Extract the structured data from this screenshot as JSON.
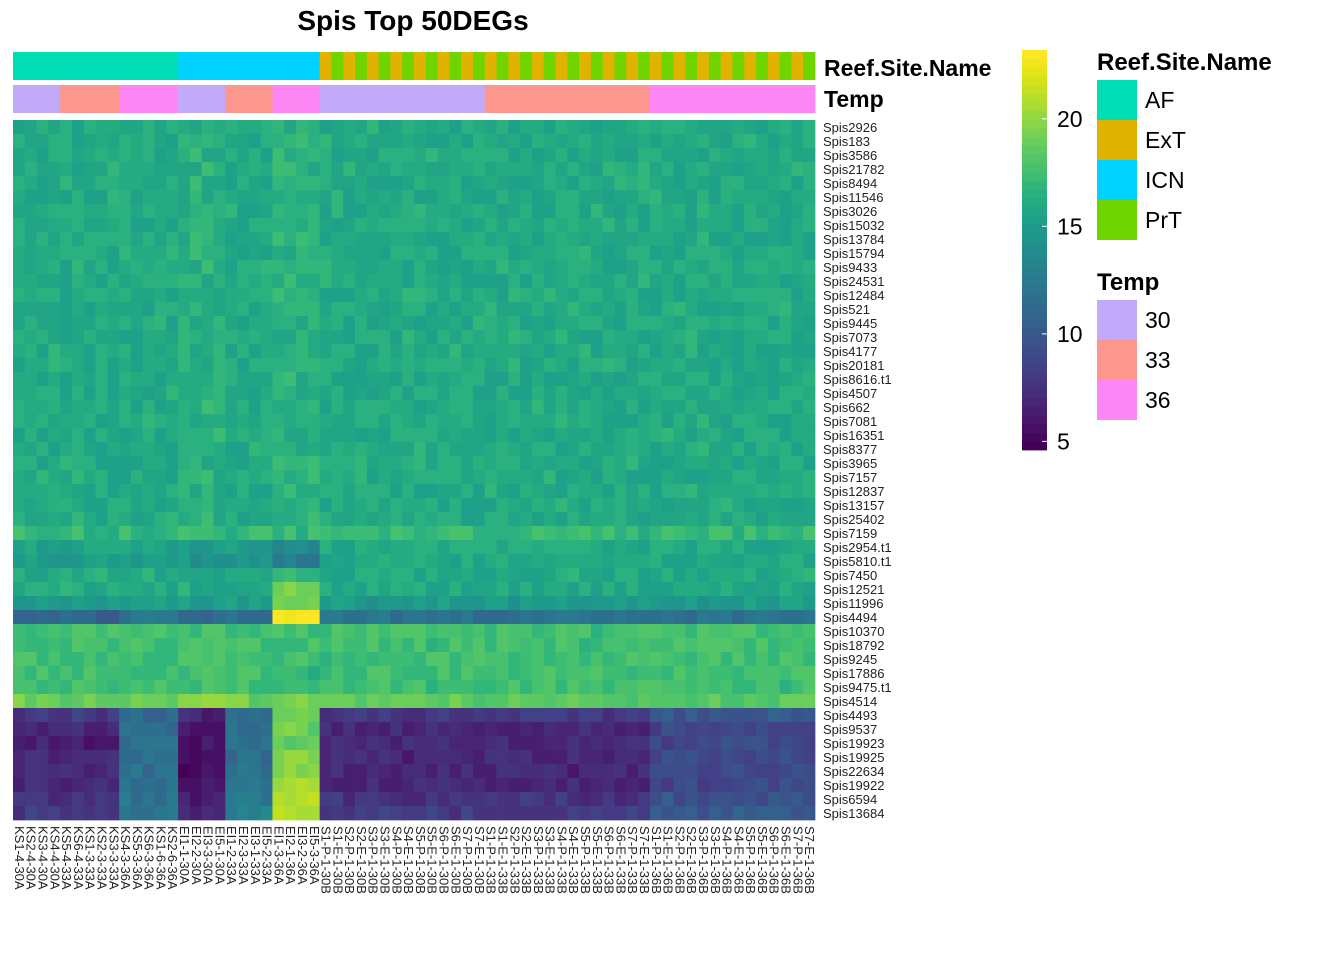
{
  "chart_data": {
    "type": "heatmap",
    "title": "Spis Top 50DEGs",
    "annotation_track_labels": [
      "Reef.Site.Name",
      "Temp"
    ],
    "legend": {
      "reef_title": "Reef.Site.Name",
      "reef_levels": [
        {
          "name": "AF",
          "color": "#00DDB4"
        },
        {
          "name": "ExT",
          "color": "#E0B300"
        },
        {
          "name": "ICN",
          "color": "#00D2FF"
        },
        {
          "name": "PrT",
          "color": "#6FD400"
        }
      ],
      "temp_title": "Temp",
      "temp_levels": [
        {
          "name": "30",
          "color": "#C3A9FA"
        },
        {
          "name": "33",
          "color": "#FD968D"
        },
        {
          "name": "36",
          "color": "#FD87F4"
        }
      ]
    },
    "colorbar": {
      "range": [
        4.6,
        23.2
      ],
      "ticks": [
        5,
        10,
        15,
        20
      ],
      "palette": [
        "#440154",
        "#46085C",
        "#471064",
        "#48176A",
        "#481F70",
        "#482576",
        "#472C7A",
        "#46337E",
        "#443983",
        "#424086",
        "#3F4788",
        "#3C4D8A",
        "#3A538B",
        "#37598C",
        "#355F8D",
        "#32648E",
        "#30698E",
        "#2D708E",
        "#2B758E",
        "#297A8E",
        "#277F8E",
        "#25858E",
        "#238A8D",
        "#21908D",
        "#1F958B",
        "#1F9A8A",
        "#1FA088",
        "#21A585",
        "#25AB82",
        "#2BB07F",
        "#33B67A",
        "#3DBC74",
        "#47C16E",
        "#52C569",
        "#5EC962",
        "#6BCD5A",
        "#79D151",
        "#88D548",
        "#97D83F",
        "#A7DB35",
        "#B5DE2B",
        "#C5E021",
        "#D5E21A",
        "#E4E419",
        "#F1E51D",
        "#FDE725"
      ],
      "band_count": 14
    },
    "rows": [
      "Spis2926",
      "Spis183",
      "Spis3586",
      "Spis21782",
      "Spis8494",
      "Spis11546",
      "Spis3026",
      "Spis15032",
      "Spis13784",
      "Spis15794",
      "Spis9433",
      "Spis24531",
      "Spis12484",
      "Spis521",
      "Spis9445",
      "Spis7073",
      "Spis4177",
      "Spis20181",
      "Spis8616.t1",
      "Spis4507",
      "Spis662",
      "Spis7081",
      "Spis16351",
      "Spis8377",
      "Spis3965",
      "Spis7157",
      "Spis12837",
      "Spis13157",
      "Spis25402",
      "Spis7159",
      "Spis2954.t1",
      "Spis5810.t1",
      "Spis7450",
      "Spis12521",
      "Spis11996",
      "Spis4494",
      "Spis10370",
      "Spis18792",
      "Spis9245",
      "Spis17886",
      "Spis9475.t1",
      "Spis4514",
      "Spis4493",
      "Spis9537",
      "Spis19923",
      "Spis19925",
      "Spis22634",
      "Spis19922",
      "Spis6594",
      "Spis13684"
    ],
    "columns": [
      {
        "label": "KS1-4-30A",
        "reef": "AF",
        "temp": "30"
      },
      {
        "label": "KS2-4-30A",
        "reef": "AF",
        "temp": "30"
      },
      {
        "label": "KS3-4-30A",
        "reef": "AF",
        "temp": "30"
      },
      {
        "label": "KS4-4-30A",
        "reef": "AF",
        "temp": "30"
      },
      {
        "label": "KS5-4-33A",
        "reef": "AF",
        "temp": "33"
      },
      {
        "label": "KS6-4-33A",
        "reef": "AF",
        "temp": "33"
      },
      {
        "label": "KS1-3-33A",
        "reef": "AF",
        "temp": "33"
      },
      {
        "label": "KS2-3-33A",
        "reef": "AF",
        "temp": "33"
      },
      {
        "label": "KS3-3-33A",
        "reef": "AF",
        "temp": "33"
      },
      {
        "label": "KS4-3-36A",
        "reef": "AF",
        "temp": "36"
      },
      {
        "label": "KS5-3-36A",
        "reef": "AF",
        "temp": "36"
      },
      {
        "label": "KS6-3-36A",
        "reef": "AF",
        "temp": "36"
      },
      {
        "label": "KS1-6-36A",
        "reef": "AF",
        "temp": "36"
      },
      {
        "label": "KS2-6-36A",
        "reef": "AF",
        "temp": "36"
      },
      {
        "label": "EI1-1-30A",
        "reef": "ICN",
        "temp": "30"
      },
      {
        "label": "EI2-2-30A",
        "reef": "ICN",
        "temp": "30"
      },
      {
        "label": "EI3-3-30A",
        "reef": "ICN",
        "temp": "30"
      },
      {
        "label": "EI5-1-30A",
        "reef": "ICN",
        "temp": "30"
      },
      {
        "label": "EI1-2-33A",
        "reef": "ICN",
        "temp": "33"
      },
      {
        "label": "EI2-3-33A",
        "reef": "ICN",
        "temp": "33"
      },
      {
        "label": "EI3-1-33A",
        "reef": "ICN",
        "temp": "33"
      },
      {
        "label": "EI5-2-33A",
        "reef": "ICN",
        "temp": "33"
      },
      {
        "label": "EI1-3-36A",
        "reef": "ICN",
        "temp": "36"
      },
      {
        "label": "EI2-1-36A",
        "reef": "ICN",
        "temp": "36"
      },
      {
        "label": "EI3-2-36A",
        "reef": "ICN",
        "temp": "36"
      },
      {
        "label": "EI5-3-36A",
        "reef": "ICN",
        "temp": "36"
      },
      {
        "label": "S1-P-1-30B",
        "reef": "ExT",
        "temp": "30"
      },
      {
        "label": "S1-E-1-30B",
        "reef": "PrT",
        "temp": "30"
      },
      {
        "label": "S2-P-1-30B",
        "reef": "ExT",
        "temp": "30"
      },
      {
        "label": "S2-E-1-30B",
        "reef": "PrT",
        "temp": "30"
      },
      {
        "label": "S3-P-1-30B",
        "reef": "ExT",
        "temp": "30"
      },
      {
        "label": "S3-E-1-30B",
        "reef": "PrT",
        "temp": "30"
      },
      {
        "label": "S4-P-1-30B",
        "reef": "ExT",
        "temp": "30"
      },
      {
        "label": "S4-E-1-30B",
        "reef": "PrT",
        "temp": "30"
      },
      {
        "label": "S5-P-1-30B",
        "reef": "ExT",
        "temp": "30"
      },
      {
        "label": "S5-E-1-30B",
        "reef": "PrT",
        "temp": "30"
      },
      {
        "label": "S6-P-1-30B",
        "reef": "ExT",
        "temp": "30"
      },
      {
        "label": "S6-E-1-30B",
        "reef": "PrT",
        "temp": "30"
      },
      {
        "label": "S7-P-1-30B",
        "reef": "ExT",
        "temp": "30"
      },
      {
        "label": "S7-E-1-30B",
        "reef": "PrT",
        "temp": "30"
      },
      {
        "label": "S1-P-1-33B",
        "reef": "ExT",
        "temp": "33"
      },
      {
        "label": "S1-E-1-33B",
        "reef": "PrT",
        "temp": "33"
      },
      {
        "label": "S2-P-1-33B",
        "reef": "ExT",
        "temp": "33"
      },
      {
        "label": "S2-E-1-33B",
        "reef": "PrT",
        "temp": "33"
      },
      {
        "label": "S3-P-1-33B",
        "reef": "ExT",
        "temp": "33"
      },
      {
        "label": "S3-E-1-33B",
        "reef": "PrT",
        "temp": "33"
      },
      {
        "label": "S4-P-1-33B",
        "reef": "ExT",
        "temp": "33"
      },
      {
        "label": "S4-E-1-33B",
        "reef": "PrT",
        "temp": "33"
      },
      {
        "label": "S5-P-1-33B",
        "reef": "ExT",
        "temp": "33"
      },
      {
        "label": "S5-E-1-33B",
        "reef": "PrT",
        "temp": "33"
      },
      {
        "label": "S6-P-1-33B",
        "reef": "ExT",
        "temp": "33"
      },
      {
        "label": "S6-E-1-33B",
        "reef": "PrT",
        "temp": "33"
      },
      {
        "label": "S7-P-1-33B",
        "reef": "ExT",
        "temp": "33"
      },
      {
        "label": "S7-E-1-33B",
        "reef": "PrT",
        "temp": "33"
      },
      {
        "label": "S1-P-1-36B",
        "reef": "ExT",
        "temp": "36"
      },
      {
        "label": "S1-E-1-36B",
        "reef": "PrT",
        "temp": "36"
      },
      {
        "label": "S2-P-1-36B",
        "reef": "ExT",
        "temp": "36"
      },
      {
        "label": "S2-E-1-36B",
        "reef": "PrT",
        "temp": "36"
      },
      {
        "label": "S3-P-1-36B",
        "reef": "ExT",
        "temp": "36"
      },
      {
        "label": "S3-E-1-36B",
        "reef": "PrT",
        "temp": "36"
      },
      {
        "label": "S4-P-1-36B",
        "reef": "ExT",
        "temp": "36"
      },
      {
        "label": "S4-E-1-36B",
        "reef": "PrT",
        "temp": "36"
      },
      {
        "label": "S5-P-1-36B",
        "reef": "ExT",
        "temp": "36"
      },
      {
        "label": "S5-E-1-36B",
        "reef": "PrT",
        "temp": "36"
      },
      {
        "label": "S6-P-1-36B",
        "reef": "ExT",
        "temp": "36"
      },
      {
        "label": "S6-E-1-36B",
        "reef": "PrT",
        "temp": "36"
      },
      {
        "label": "S7-P-1-36B",
        "reef": "ExT",
        "temp": "36"
      },
      {
        "label": "S7-E-1-36B",
        "reef": "PrT",
        "temp": "36"
      }
    ],
    "row_means": {
      "AF": {
        "30": [
          16,
          16,
          16,
          16,
          16,
          16,
          16,
          16,
          16,
          16,
          16,
          16,
          16,
          16,
          16,
          16,
          16,
          16,
          16,
          16,
          16,
          16,
          16,
          16,
          16,
          16,
          16,
          16,
          16,
          17,
          15.5,
          15,
          16,
          16,
          15,
          11,
          17.5,
          17.5,
          17.5,
          17.5,
          17.5,
          19,
          8,
          7,
          6.5,
          7,
          7,
          7,
          7.5,
          8
        ],
        "33": [
          16,
          16,
          16,
          16,
          16,
          16,
          16,
          16,
          16,
          16,
          16,
          16,
          16,
          16,
          16,
          16,
          16,
          16,
          16,
          16,
          16,
          16,
          16,
          16,
          16,
          16,
          16,
          16,
          16,
          17,
          15.5,
          15,
          16,
          16,
          15,
          11,
          17.5,
          17.5,
          17.5,
          17.5,
          17.5,
          19,
          8,
          7,
          6.5,
          7,
          7,
          7,
          7.5,
          8
        ],
        "36": [
          16,
          16,
          16,
          16,
          16,
          16,
          16,
          16,
          16,
          16,
          16,
          16,
          16,
          16,
          16,
          16,
          16,
          16,
          16,
          16,
          16,
          16,
          16,
          16,
          16,
          16,
          16,
          16,
          16,
          17,
          15.5,
          15,
          16,
          16,
          15,
          12,
          17.5,
          17.5,
          17.5,
          17.5,
          17.5,
          19,
          11,
          11.5,
          11.5,
          11.5,
          11.5,
          12,
          12,
          12
        ]
      },
      "ICN": {
        "30": [
          16.5,
          16.5,
          16.5,
          16.5,
          16.5,
          16.5,
          16.5,
          16.5,
          16.5,
          16.5,
          16.5,
          16.5,
          16.5,
          16.5,
          16.5,
          16.5,
          16.5,
          16.5,
          16.5,
          16.5,
          16.5,
          16.5,
          16.5,
          16.5,
          16.5,
          16.5,
          16.5,
          16.5,
          16.5,
          17,
          15,
          14.5,
          16,
          16,
          15,
          11,
          17.5,
          17.5,
          17.5,
          17.5,
          17.5,
          20,
          7,
          6,
          5.5,
          5.5,
          5.5,
          6,
          6.5,
          7
        ],
        "33": [
          16,
          16,
          16,
          16,
          16,
          16,
          16,
          16,
          16,
          16,
          16,
          16,
          16,
          16,
          16,
          16,
          16,
          16,
          16,
          16,
          16,
          16,
          16,
          16,
          16,
          16,
          16,
          16,
          16,
          17,
          15,
          14.5,
          16,
          16,
          15,
          12,
          17.5,
          17.5,
          17.5,
          17.5,
          17.5,
          19,
          11,
          11.5,
          11.5,
          11.5,
          12,
          12,
          12.5,
          13
        ],
        "36": [
          16.5,
          16.5,
          16.5,
          16.5,
          16.5,
          16.5,
          16.5,
          16.5,
          16.5,
          16.5,
          16.5,
          16.5,
          16.5,
          16.5,
          16.5,
          16.5,
          16.5,
          16.5,
          16.5,
          16.5,
          16.5,
          16.5,
          16.5,
          16.5,
          16.5,
          16.5,
          16.5,
          16.5,
          16.5,
          17,
          14,
          12.5,
          17,
          19,
          19,
          23,
          17.5,
          17.5,
          17.5,
          17,
          17.5,
          19,
          19,
          19,
          19,
          19.5,
          20,
          20.5,
          21,
          21
        ]
      },
      "ExT": {
        "30": [
          16,
          16,
          16,
          16,
          16,
          16,
          16,
          16,
          16,
          16,
          16,
          16,
          16,
          16,
          16,
          16,
          16,
          16,
          16,
          16,
          16,
          16,
          16,
          16,
          16,
          16,
          16,
          16,
          16,
          17,
          16,
          16,
          16,
          16,
          15,
          12,
          17.5,
          17.5,
          17.5,
          17.5,
          17.5,
          18.5,
          8,
          7,
          7,
          7,
          7,
          7,
          7.5,
          8
        ],
        "33": [
          16,
          16,
          16,
          16,
          16,
          16,
          16,
          16,
          16,
          16,
          16,
          16,
          16,
          16,
          16,
          16,
          16,
          16,
          16,
          16,
          16,
          16,
          16,
          16,
          16,
          16,
          16,
          16,
          16,
          17,
          16,
          16,
          16,
          16,
          15,
          12,
          17.5,
          17.5,
          17.5,
          17.5,
          17.5,
          18.5,
          8,
          7,
          7,
          7,
          7,
          7,
          7.5,
          8
        ],
        "36": [
          16,
          16,
          16,
          16,
          16,
          16,
          16,
          16,
          16,
          16,
          16,
          16,
          16,
          16,
          16,
          16,
          16,
          16,
          16,
          16,
          16,
          16,
          16,
          16,
          16,
          16,
          16,
          16,
          16,
          17,
          16,
          16,
          16,
          16,
          15,
          12,
          17.5,
          17.5,
          17.5,
          17.5,
          17.5,
          18.5,
          10,
          9,
          9,
          9,
          9,
          9,
          9.5,
          10
        ]
      },
      "PrT": {
        "30": [
          16,
          16,
          16,
          16,
          16,
          16,
          16,
          16,
          16,
          16,
          16,
          16,
          16,
          16,
          16,
          16,
          16,
          16,
          16,
          16,
          16,
          16,
          16,
          16,
          16,
          16,
          16,
          16,
          16,
          17,
          16,
          16,
          16,
          16,
          15,
          12,
          17.5,
          17.5,
          17.5,
          17.5,
          17.5,
          18.5,
          8,
          7,
          7,
          7,
          7,
          7,
          7.5,
          8
        ],
        "33": [
          16,
          16,
          16,
          16,
          16,
          16,
          16,
          16,
          16,
          16,
          16,
          16,
          16,
          16,
          16,
          16,
          16,
          16,
          16,
          16,
          16,
          16,
          16,
          16,
          16,
          16,
          16,
          16,
          16,
          17,
          16,
          16,
          16,
          16,
          15,
          12,
          17.5,
          17.5,
          17.5,
          17.5,
          17.5,
          18.5,
          8,
          7,
          7,
          7,
          7,
          7,
          7.5,
          8
        ],
        "36": [
          16,
          16,
          16,
          16,
          16,
          16,
          16,
          16,
          16,
          16,
          16,
          16,
          16,
          16,
          16,
          16,
          16,
          16,
          16,
          16,
          16,
          16,
          16,
          16,
          16,
          16,
          16,
          16,
          16,
          17,
          16,
          16,
          16,
          16,
          15,
          12,
          17.5,
          17.5,
          17.5,
          17.5,
          17.5,
          18.5,
          10,
          9,
          9,
          9,
          9,
          9,
          9.5,
          10
        ]
      }
    }
  }
}
